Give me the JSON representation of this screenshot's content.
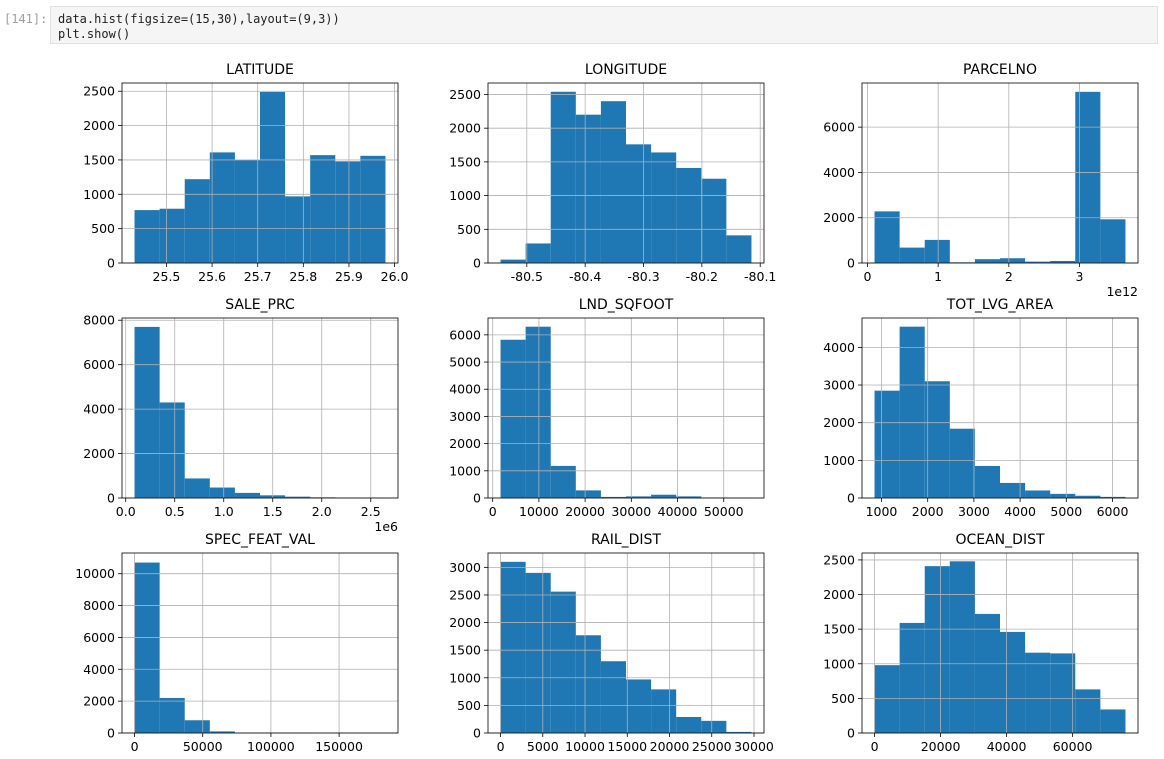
{
  "cell": {
    "prompt": "[141]:",
    "code": [
      "data.hist(figsize=(15,30),layout=(9,3))",
      "plt.show()"
    ]
  },
  "chart_data": [
    {
      "type": "histogram",
      "title": "LATITUDE",
      "color": "#1f77b4",
      "grid": true,
      "bins": [
        25.43,
        25.485,
        25.54,
        25.595,
        25.65,
        25.705,
        25.76,
        25.815,
        25.87,
        25.925,
        25.98
      ],
      "values": [
        770,
        790,
        1220,
        1610,
        1500,
        2490,
        970,
        1570,
        1480,
        1560
      ],
      "xlim": [
        25.4025,
        26.0075
      ],
      "xticks": [
        25.5,
        25.6,
        25.7,
        25.8,
        25.9,
        {
          "value": 26,
          "label": "26.0"
        }
      ],
      "ylim": [
        0,
        2620
      ],
      "yticks": [
        0,
        500,
        1000,
        1500,
        2000,
        2500
      ]
    },
    {
      "type": "histogram",
      "title": "LONGITUDE",
      "color": "#1f77b4",
      "grid": true,
      "bins": [
        -80.545,
        -80.502,
        -80.459,
        -80.416,
        -80.373,
        -80.33,
        -80.287,
        -80.244,
        -80.201,
        -80.158,
        -80.115
      ],
      "values": [
        50,
        290,
        2540,
        2200,
        2400,
        1760,
        1640,
        1410,
        1250,
        410
      ],
      "xlim": [
        -80.5665,
        -80.0935
      ],
      "xticks": [
        -80.5,
        -80.4,
        -80.3,
        -80.2,
        -80.1
      ],
      "ylim": [
        0,
        2670
      ],
      "yticks": [
        0,
        500,
        1000,
        1500,
        2000,
        2500
      ]
    },
    {
      "type": "histogram",
      "title": "PARCELNO",
      "color": "#1f77b4",
      "grid": true,
      "x_offset_label": "1e12",
      "bins": [
        0.1,
        0.455,
        0.81,
        1.165,
        1.52,
        1.875,
        2.23,
        2.585,
        2.94,
        3.295,
        3.65
      ],
      "values": [
        2280,
        680,
        1020,
        30,
        170,
        210,
        60,
        90,
        7560,
        1930
      ],
      "xlim": [
        -0.0775,
        3.8275
      ],
      "xticks": [
        0,
        1,
        2,
        3
      ],
      "ylim": [
        0,
        7950
      ],
      "yticks": [
        0,
        2000,
        4000,
        6000
      ]
    },
    {
      "type": "histogram",
      "title": "SALE_PRC",
      "color": "#1f77b4",
      "grid": true,
      "x_offset_label": "1e6",
      "bins": [
        0.09,
        0.346,
        0.602,
        0.858,
        1.114,
        1.37,
        1.626,
        1.882,
        2.138,
        2.394,
        2.65
      ],
      "values": [
        7700,
        4300,
        880,
        470,
        230,
        120,
        60,
        30,
        20,
        10
      ],
      "xlim": [
        -0.038,
        2.778
      ],
      "xticks": [
        {
          "value": 0,
          "label": "0.0"
        },
        0.5,
        {
          "value": 1,
          "label": "1.0"
        },
        1.5,
        {
          "value": 2,
          "label": "2.0"
        },
        2.5
      ],
      "ylim": [
        0,
        8100
      ],
      "yticks": [
        0,
        2000,
        4000,
        6000,
        8000
      ]
    },
    {
      "type": "histogram",
      "title": "LND_SQFOOT",
      "color": "#1f77b4",
      "grid": true,
      "bins": [
        1700,
        7130,
        12560,
        17990,
        23420,
        28850,
        34280,
        39710,
        45140,
        50570,
        56000
      ],
      "values": [
        5820,
        6300,
        1180,
        280,
        40,
        60,
        120,
        60,
        20,
        10
      ],
      "xlim": [
        -1015,
        58715
      ],
      "xticks": [
        0,
        10000,
        20000,
        30000,
        40000,
        50000
      ],
      "ylim": [
        0,
        6620
      ],
      "yticks": [
        0,
        1000,
        2000,
        3000,
        4000,
        5000,
        6000
      ]
    },
    {
      "type": "histogram",
      "title": "TOT_LVG_AREA",
      "color": "#1f77b4",
      "grid": true,
      "bins": [
        850,
        1393,
        1936,
        2479,
        3022,
        3565,
        4108,
        4651,
        5194,
        5737,
        6280
      ],
      "values": [
        2850,
        4550,
        3100,
        1840,
        850,
        400,
        200,
        110,
        60,
        30
      ],
      "xlim": [
        578.5,
        6551.5
      ],
      "xticks": [
        1000,
        2000,
        3000,
        4000,
        5000,
        6000
      ],
      "ylim": [
        0,
        4780
      ],
      "yticks": [
        0,
        1000,
        2000,
        3000,
        4000
      ]
    },
    {
      "type": "histogram",
      "title": "SPEC_FEAT_VAL",
      "color": "#1f77b4",
      "grid": true,
      "bins": [
        0,
        18400,
        36800,
        55200,
        73600,
        92000,
        110400,
        128800,
        147200,
        165600,
        184000
      ],
      "values": [
        10700,
        2200,
        800,
        100,
        20,
        10,
        5,
        3,
        2,
        1
      ],
      "xlim": [
        -9200,
        193200
      ],
      "xticks": [
        0,
        50000,
        100000,
        150000
      ],
      "ylim": [
        0,
        11300
      ],
      "yticks": [
        0,
        2000,
        4000,
        6000,
        8000,
        10000
      ]
    },
    {
      "type": "histogram",
      "title": "RAIL_DIST",
      "color": "#1f77b4",
      "grid": true,
      "bins": [
        0,
        2970,
        5940,
        8910,
        11880,
        14850,
        17820,
        20790,
        23760,
        26730,
        29700
      ],
      "values": [
        3100,
        2900,
        2560,
        1770,
        1300,
        970,
        790,
        290,
        220,
        20
      ],
      "xlim": [
        -1485,
        31185
      ],
      "xticks": [
        0,
        5000,
        10000,
        15000,
        20000,
        25000,
        30000
      ],
      "ylim": [
        0,
        3260
      ],
      "yticks": [
        0,
        500,
        1000,
        1500,
        2000,
        2500,
        3000
      ]
    },
    {
      "type": "histogram",
      "title": "OCEAN_DIST",
      "color": "#1f77b4",
      "grid": true,
      "bins": [
        0,
        7600,
        15200,
        22800,
        30400,
        38000,
        45600,
        53200,
        60800,
        68400,
        76000
      ],
      "values": [
        980,
        1590,
        2410,
        2480,
        1720,
        1460,
        1160,
        1150,
        630,
        340
      ],
      "xlim": [
        -3800,
        79800
      ],
      "xticks": [
        0,
        20000,
        40000,
        60000
      ],
      "ylim": [
        0,
        2600
      ],
      "yticks": [
        0,
        500,
        1000,
        1500,
        2000,
        2500
      ]
    }
  ]
}
